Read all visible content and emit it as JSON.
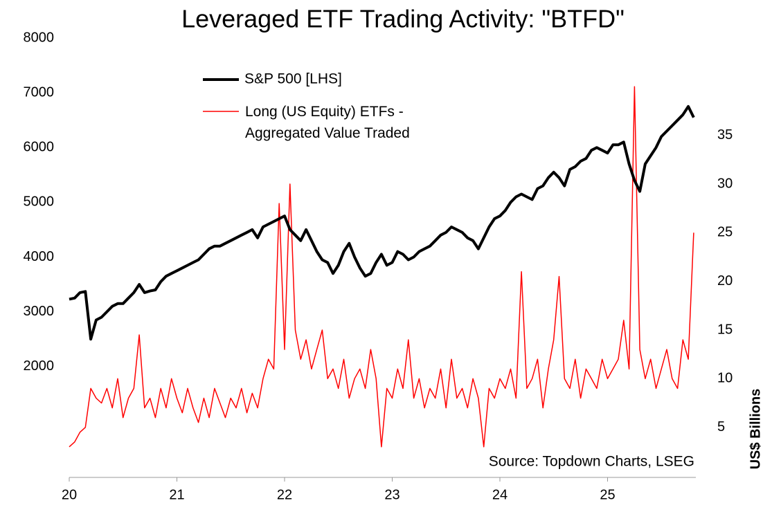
{
  "chart_data": {
    "type": "line",
    "title": "Leveraged ETF Trading Activity: \"BTFD\"",
    "annotation": "Source: Topdown Charts, LSEG",
    "y2label": "US$ Billions",
    "xlim": [
      2020,
      2025.82
    ],
    "xticks": [
      {
        "value": 2020,
        "label": "20"
      },
      {
        "value": 2021,
        "label": "21"
      },
      {
        "value": 2022,
        "label": "22"
      },
      {
        "value": 2023,
        "label": "23"
      },
      {
        "value": 2024,
        "label": "24"
      },
      {
        "value": 2025,
        "label": "25"
      }
    ],
    "ylim": [
      0,
      8000
    ],
    "yticks": [
      2000,
      3000,
      4000,
      5000,
      6000,
      7000,
      8000
    ],
    "y2lim": [
      0,
      45
    ],
    "y2ticks": [
      5,
      10,
      15,
      20,
      25,
      30,
      35
    ],
    "x": [
      2020,
      2020.05,
      2020.1,
      2020.15,
      2020.2,
      2020.25,
      2020.3,
      2020.35,
      2020.4,
      2020.45,
      2020.5,
      2020.55,
      2020.6,
      2020.65,
      2020.7,
      2020.75,
      2020.8,
      2020.85,
      2020.9,
      2020.95,
      2021,
      2021.05,
      2021.1,
      2021.15,
      2021.2,
      2021.25,
      2021.3,
      2021.35,
      2021.4,
      2021.45,
      2021.5,
      2021.55,
      2021.6,
      2021.65,
      2021.7,
      2021.75,
      2021.8,
      2021.85,
      2021.9,
      2021.95,
      2022,
      2022.05,
      2022.1,
      2022.15,
      2022.2,
      2022.25,
      2022.3,
      2022.35,
      2022.4,
      2022.45,
      2022.5,
      2022.55,
      2022.6,
      2022.65,
      2022.7,
      2022.75,
      2022.8,
      2022.85,
      2022.9,
      2022.95,
      2023,
      2023.05,
      2023.1,
      2023.15,
      2023.2,
      2023.25,
      2023.3,
      2023.35,
      2023.4,
      2023.45,
      2023.5,
      2023.55,
      2023.6,
      2023.65,
      2023.7,
      2023.75,
      2023.8,
      2023.85,
      2023.9,
      2023.95,
      2024,
      2024.05,
      2024.1,
      2024.15,
      2024.2,
      2024.25,
      2024.3,
      2024.35,
      2024.4,
      2024.45,
      2024.5,
      2024.55,
      2024.6,
      2024.65,
      2024.7,
      2024.75,
      2024.8,
      2024.85,
      2024.9,
      2024.95,
      2025,
      2025.05,
      2025.1,
      2025.15,
      2025.2,
      2025.25,
      2025.3,
      2025.35,
      2025.4,
      2025.45,
      2025.5,
      2025.55,
      2025.6,
      2025.65,
      2025.7,
      2025.75,
      2025.8
    ],
    "series": [
      {
        "name": "S&P 500 [LHS]",
        "color": "#000000",
        "values": [
          3230,
          3250,
          3350,
          3370,
          2500,
          2850,
          2900,
          3000,
          3100,
          3150,
          3150,
          3250,
          3350,
          3500,
          3350,
          3380,
          3400,
          3550,
          3650,
          3700,
          3750,
          3800,
          3850,
          3900,
          3950,
          4050,
          4150,
          4200,
          4200,
          4250,
          4300,
          4350,
          4400,
          4450,
          4500,
          4350,
          4550,
          4600,
          4650,
          4700,
          4750,
          4500,
          4400,
          4300,
          4500,
          4300,
          4100,
          3950,
          3900,
          3700,
          3850,
          4100,
          4250,
          4000,
          3800,
          3650,
          3700,
          3900,
          4050,
          3850,
          3900,
          4100,
          4050,
          3950,
          4000,
          4100,
          4150,
          4200,
          4300,
          4400,
          4450,
          4550,
          4500,
          4450,
          4350,
          4300,
          4150,
          4350,
          4550,
          4700,
          4750,
          4850,
          5000,
          5100,
          5150,
          5100,
          5050,
          5250,
          5300,
          5450,
          5550,
          5450,
          5300,
          5600,
          5650,
          5750,
          5800,
          5950,
          6000,
          5950,
          5900,
          6050,
          6050,
          6100,
          5700,
          5400,
          5200,
          5700,
          5850,
          6000,
          6200,
          6300,
          6400,
          6500,
          6600,
          6750,
          6550
        ]
      },
      {
        "name": "Long (US Equity) ETFs - Aggregated Value Traded",
        "color": "#ff0000",
        "axis": "y2",
        "values": [
          3,
          3.5,
          4.5,
          5,
          9,
          8,
          7.5,
          9,
          7,
          10,
          6,
          8,
          9,
          14.5,
          7,
          8,
          6,
          9,
          7,
          10,
          8,
          6.5,
          9,
          7,
          5.5,
          8,
          6,
          9,
          7.5,
          6,
          8,
          7,
          9,
          6.5,
          8.5,
          7,
          10,
          12,
          11,
          28,
          13,
          30,
          15,
          12,
          14,
          11,
          13,
          15,
          10,
          11,
          9,
          12,
          8,
          10,
          11,
          9,
          13,
          10,
          3,
          9,
          8,
          11,
          9,
          14,
          8,
          10,
          7,
          9,
          8,
          11,
          7,
          12,
          8,
          9,
          7,
          10,
          8,
          3,
          9,
          8,
          10,
          9,
          11,
          8,
          21,
          9,
          10,
          12,
          7,
          11,
          14,
          20.5,
          10,
          9,
          12,
          8,
          11,
          10,
          9,
          12,
          10,
          11,
          12,
          16,
          11,
          40,
          13,
          10,
          12,
          9,
          11,
          13,
          10,
          9,
          14,
          12,
          25
        ]
      }
    ]
  }
}
